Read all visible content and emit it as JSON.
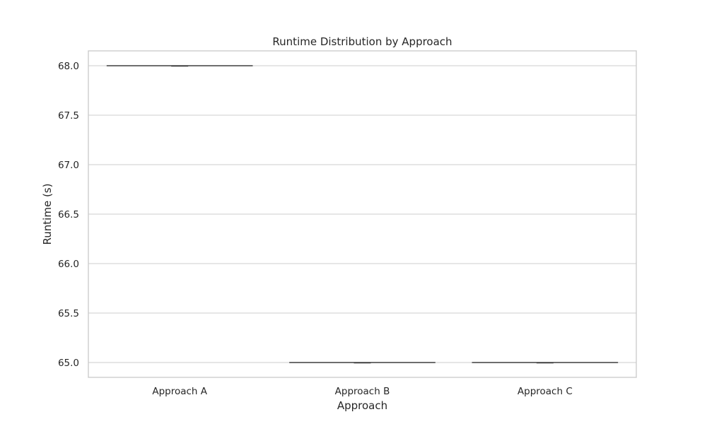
{
  "chart_data": {
    "type": "box",
    "title": "Runtime Distribution by Approach",
    "xlabel": "Approach",
    "ylabel": "Runtime (s)",
    "categories": [
      "Approach A",
      "Approach B",
      "Approach C"
    ],
    "values": [
      68.0,
      65.0,
      65.0
    ],
    "ylim": [
      64.85,
      68.15
    ],
    "yticks": [
      65.0,
      65.5,
      66.0,
      66.5,
      67.0,
      67.5,
      68.0
    ],
    "ytick_labels": [
      "65.0",
      "65.5",
      "66.0",
      "66.5",
      "67.0",
      "67.5",
      "68.0"
    ],
    "grid": "horizontal",
    "colors": {
      "grid": "#cccccc",
      "frame": "#cccccc",
      "box": "#3f3f3f",
      "text": "#262626"
    }
  }
}
